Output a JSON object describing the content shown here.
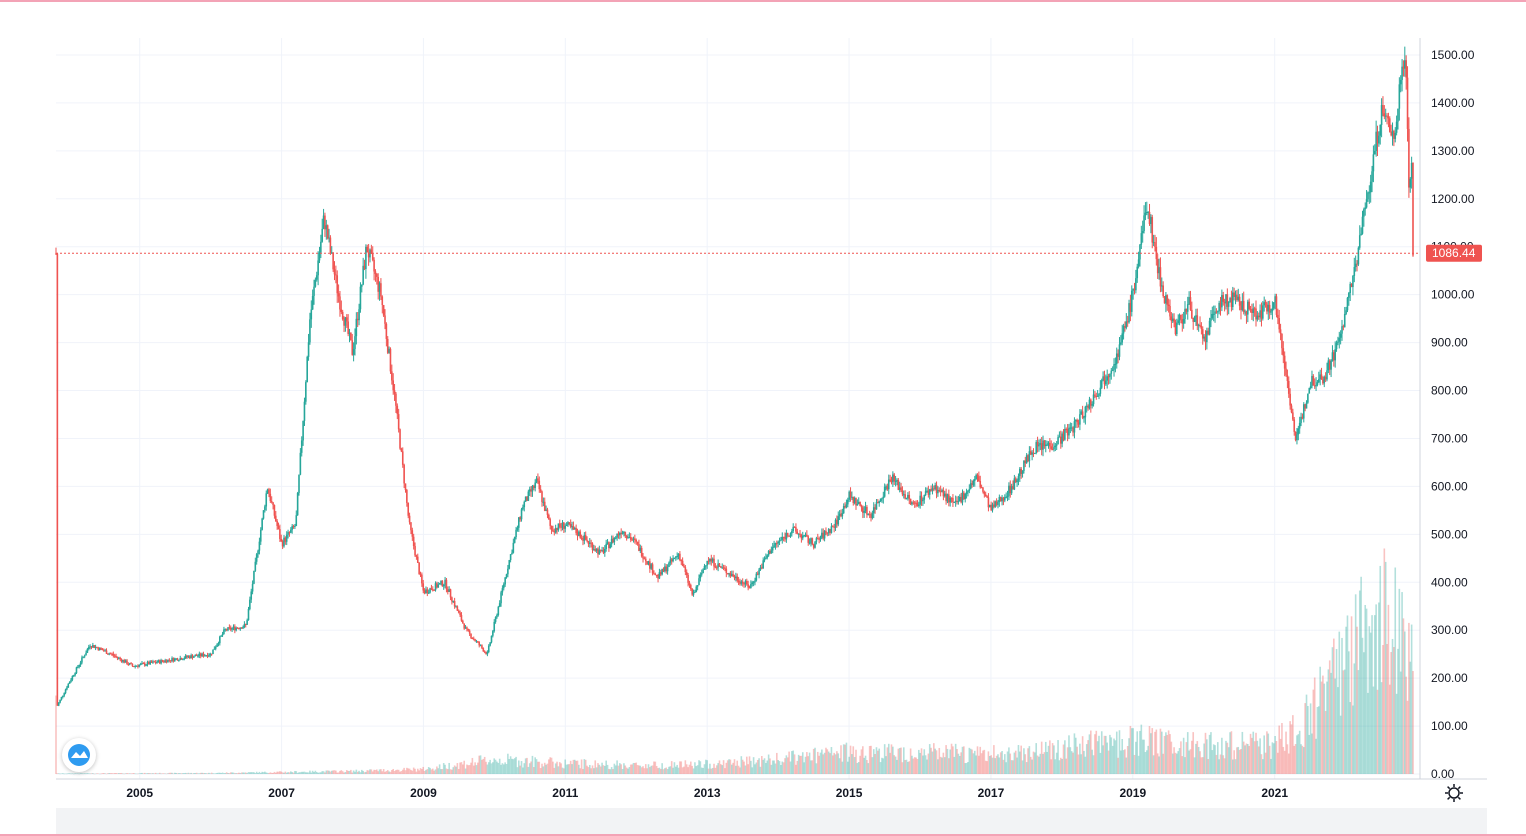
{
  "colors": {
    "up": "#26a69a",
    "down": "#ef5350",
    "grid": "#f0f3fa",
    "axis_text": "#131722",
    "last_price_bg": "#ef5350"
  },
  "icons": {
    "logo": "tradingview-cloud-logo-icon",
    "settings": "gear-icon"
  },
  "chart_data": {
    "type": "candlestick",
    "x_range": [
      2003.82,
      2022.95
    ],
    "y_range": [
      0,
      1560
    ],
    "y_ticks": [
      "0.00",
      "100.00",
      "200.00",
      "300.00",
      "400.00",
      "500.00",
      "600.00",
      "700.00",
      "800.00",
      "900.00",
      "1000.00",
      "1100.00",
      "1200.00",
      "1300.00",
      "1400.00",
      "1500.00"
    ],
    "x_ticks": [
      "2005",
      "2007",
      "2009",
      "2011",
      "2013",
      "2015",
      "2017",
      "2019",
      "2021"
    ],
    "last_price": "1086.44",
    "price_path": [
      [
        2003.83,
        140
      ],
      [
        2004.0,
        190
      ],
      [
        2004.3,
        270
      ],
      [
        2004.6,
        250
      ],
      [
        2004.9,
        225
      ],
      [
        2005.3,
        235
      ],
      [
        2005.7,
        245
      ],
      [
        2006.0,
        250
      ],
      [
        2006.2,
        300
      ],
      [
        2006.5,
        310
      ],
      [
        2006.8,
        600
      ],
      [
        2007.0,
        480
      ],
      [
        2007.2,
        520
      ],
      [
        2007.4,
        950
      ],
      [
        2007.6,
        1160
      ],
      [
        2007.8,
        1000
      ],
      [
        2008.0,
        880
      ],
      [
        2008.2,
        1100
      ],
      [
        2008.4,
        1000
      ],
      [
        2008.6,
        780
      ],
      [
        2008.8,
        520
      ],
      [
        2009.0,
        380
      ],
      [
        2009.3,
        400
      ],
      [
        2009.6,
        300
      ],
      [
        2009.9,
        250
      ],
      [
        2010.2,
        440
      ],
      [
        2010.4,
        560
      ],
      [
        2010.6,
        610
      ],
      [
        2010.8,
        510
      ],
      [
        2011.0,
        520
      ],
      [
        2011.2,
        500
      ],
      [
        2011.5,
        460
      ],
      [
        2011.8,
        510
      ],
      [
        2012.0,
        480
      ],
      [
        2012.3,
        410
      ],
      [
        2012.6,
        460
      ],
      [
        2012.8,
        370
      ],
      [
        2013.0,
        450
      ],
      [
        2013.3,
        420
      ],
      [
        2013.6,
        390
      ],
      [
        2013.9,
        470
      ],
      [
        2014.2,
        510
      ],
      [
        2014.5,
        480
      ],
      [
        2014.8,
        520
      ],
      [
        2015.0,
        580
      ],
      [
        2015.3,
        540
      ],
      [
        2015.6,
        620
      ],
      [
        2015.9,
        560
      ],
      [
        2016.2,
        600
      ],
      [
        2016.5,
        560
      ],
      [
        2016.8,
        620
      ],
      [
        2017.0,
        550
      ],
      [
        2017.3,
        600
      ],
      [
        2017.6,
        680
      ],
      [
        2017.9,
        690
      ],
      [
        2018.2,
        730
      ],
      [
        2018.5,
        800
      ],
      [
        2018.8,
        880
      ],
      [
        2019.0,
        1000
      ],
      [
        2019.2,
        1190
      ],
      [
        2019.4,
        1020
      ],
      [
        2019.6,
        930
      ],
      [
        2019.8,
        980
      ],
      [
        2020.0,
        900
      ],
      [
        2020.2,
        980
      ],
      [
        2020.4,
        990
      ],
      [
        2020.6,
        970
      ],
      [
        2020.8,
        960
      ],
      [
        2021.0,
        990
      ],
      [
        2021.2,
        800
      ],
      [
        2021.3,
        690
      ],
      [
        2021.5,
        820
      ],
      [
        2021.7,
        830
      ],
      [
        2021.9,
        900
      ],
      [
        2022.1,
        1030
      ],
      [
        2022.3,
        1200
      ],
      [
        2022.5,
        1380
      ],
      [
        2022.7,
        1330
      ],
      [
        2022.8,
        1500
      ],
      [
        2022.85,
        1480
      ],
      [
        2022.9,
        1200
      ],
      [
        2022.93,
        1290
      ],
      [
        2022.95,
        1086
      ]
    ],
    "volume_path": [
      [
        2003.83,
        1
      ],
      [
        2006.0,
        2
      ],
      [
        2007.0,
        4
      ],
      [
        2008.0,
        6
      ],
      [
        2009.0,
        10
      ],
      [
        2010.0,
        30
      ],
      [
        2011.0,
        22
      ],
      [
        2012.0,
        18
      ],
      [
        2013.0,
        20
      ],
      [
        2014.0,
        30
      ],
      [
        2015.0,
        45
      ],
      [
        2016.0,
        45
      ],
      [
        2017.0,
        40
      ],
      [
        2018.0,
        55
      ],
      [
        2019.0,
        70
      ],
      [
        2020.0,
        60
      ],
      [
        2021.0,
        60
      ],
      [
        2021.5,
        120
      ],
      [
        2022.0,
        240
      ],
      [
        2022.3,
        290
      ],
      [
        2022.6,
        320
      ],
      [
        2022.8,
        300
      ],
      [
        2022.95,
        220
      ]
    ]
  }
}
